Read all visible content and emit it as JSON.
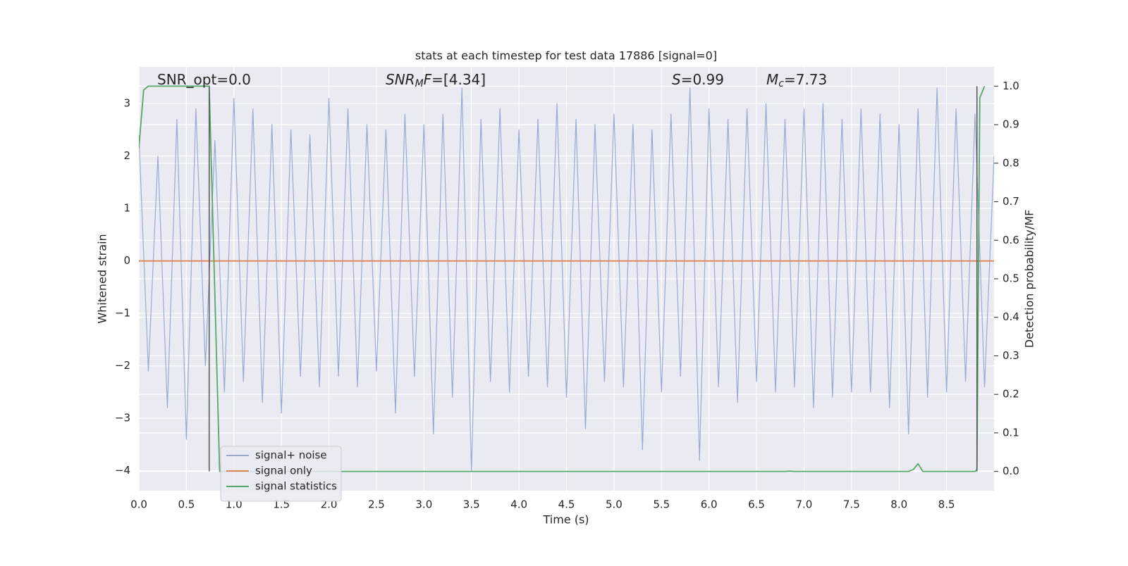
{
  "chart_data": {
    "type": "line",
    "title": "stats at each timestep for test data 17886 [signal=0]",
    "xlabel": "Time (s)",
    "ylabel": "Whitened strain",
    "y2label": "Detection probability/MF",
    "xlim": [
      0,
      9
    ],
    "ylim": [
      -4.38,
      3.7
    ],
    "y2lim": [
      -0.05,
      1.05
    ],
    "xticks": [
      {
        "value": 0,
        "label": "0.0"
      },
      0.5,
      {
        "value": 1,
        "label": "1.0"
      },
      1.5,
      {
        "value": 2,
        "label": "2.0"
      },
      2.5,
      {
        "value": 3,
        "label": "3.0"
      },
      3.5,
      {
        "value": 4,
        "label": "4.0"
      },
      4.5,
      {
        "value": 5,
        "label": "5.0"
      },
      5.5,
      {
        "value": 6,
        "label": "6.0"
      },
      6.5,
      {
        "value": 7,
        "label": "7.0"
      },
      7.5,
      {
        "value": 8,
        "label": "8.0"
      },
      8.5
    ],
    "yticks": [
      {
        "value": -4,
        "label": "−4"
      },
      {
        "value": -3,
        "label": "−3"
      },
      {
        "value": -2,
        "label": "−2"
      },
      {
        "value": -1,
        "label": "−1"
      },
      0,
      1,
      2,
      3
    ],
    "y2ticks": [
      {
        "value": 0,
        "label": "0.0"
      },
      0.1,
      0.2,
      0.3,
      0.4,
      0.5,
      0.6,
      0.7,
      0.8,
      0.9,
      {
        "value": 1,
        "label": "1.0"
      }
    ],
    "grid": true,
    "legend": "lower left",
    "series": [
      {
        "name": "signal+ noise",
        "color": "#9aabd0",
        "axis": "y",
        "x": [
          0,
          0.1,
          0.2,
          0.3,
          0.4,
          0.5,
          0.6,
          0.7,
          0.8,
          0.9,
          1,
          1.1,
          1.2,
          1.3,
          1.4,
          1.5,
          1.6,
          1.7,
          1.8,
          1.9,
          2,
          2.1,
          2.2,
          2.3,
          2.4,
          2.5,
          2.6,
          2.7,
          2.8,
          2.9,
          3,
          3.1,
          3.2,
          3.3,
          3.4,
          3.5,
          3.6,
          3.7,
          3.8,
          3.9,
          4,
          4.1,
          4.2,
          4.3,
          4.4,
          4.5,
          4.6,
          4.7,
          4.8,
          4.9,
          5,
          5.1,
          5.2,
          5.3,
          5.4,
          5.5,
          5.6,
          5.7,
          5.8,
          5.9,
          6,
          6.1,
          6.2,
          6.3,
          6.4,
          6.5,
          6.6,
          6.7,
          6.8,
          6.9,
          7,
          7.1,
          7.2,
          7.3,
          7.4,
          7.5,
          7.6,
          7.7,
          7.8,
          7.9,
          8,
          8.1,
          8.2,
          8.3,
          8.4,
          8.5,
          8.6,
          8.7,
          8.8,
          8.9,
          9
        ],
        "values": [
          2.4,
          -2.1,
          2.0,
          -2.8,
          2.7,
          -3.4,
          2.9,
          -2.0,
          2.3,
          -2.5,
          3.1,
          -2.3,
          2.9,
          -2.7,
          2.6,
          -2.9,
          2.5,
          -2.2,
          2.4,
          -2.4,
          3.1,
          -2.2,
          2.9,
          -2.4,
          2.6,
          -2.1,
          2.5,
          -2.9,
          2.8,
          -2.2,
          2.6,
          -3.3,
          2.8,
          -2.6,
          3.3,
          -4.0,
          2.7,
          -2.3,
          2.9,
          -2.5,
          2.5,
          -2.2,
          2.7,
          -2.4,
          3.0,
          -2.6,
          2.7,
          -3.2,
          2.6,
          -2.3,
          2.8,
          -2.4,
          2.6,
          -3.6,
          2.5,
          -2.5,
          2.8,
          -2.2,
          3.3,
          -3.8,
          2.9,
          -2.4,
          2.7,
          -2.7,
          2.9,
          -2.3,
          3.0,
          -2.5,
          2.7,
          -2.4,
          2.9,
          -2.8,
          3.0,
          -2.6,
          2.7,
          -2.5,
          2.9,
          -2.5,
          2.8,
          -2.8,
          2.6,
          -3.3,
          2.9,
          -2.6,
          3.3,
          -2.5,
          2.9,
          -2.3,
          2.8,
          -2.4,
          2.0
        ]
      },
      {
        "name": "signal only",
        "color": "#dd8452",
        "axis": "y",
        "x": [
          0,
          9
        ],
        "values": [
          0,
          0
        ]
      },
      {
        "name": "signal statistics",
        "color": "#55a868",
        "axis": "y2",
        "x": [
          0,
          0.05,
          0.1,
          0.74,
          0.85,
          0.88,
          6.8,
          6.85,
          6.9,
          8.1,
          8.15,
          8.2,
          8.25,
          8.8,
          8.82,
          8.85,
          8.9
        ],
        "values": [
          0.84,
          0.99,
          1.0,
          1.0,
          0.0,
          0.0,
          0.0,
          0.001,
          0.0,
          0.0,
          0.005,
          0.02,
          0.0,
          0.0,
          0.005,
          0.97,
          1.0
        ]
      }
    ],
    "vlines": {
      "x": [
        0.74,
        8.82
      ],
      "ymin": 0,
      "ymax": 1,
      "axis": "y2",
      "color": "#555555"
    },
    "annotations": [
      {
        "segments": [
          {
            "text": "SNR_opt=0.0",
            "style": "normal"
          }
        ]
      },
      {
        "segments": [
          {
            "text": "SNR",
            "style": "italic"
          },
          {
            "text": "M",
            "style": "sub"
          },
          {
            "text": "F",
            "style": "italic"
          },
          {
            "text": "=[4.34]",
            "style": "normal"
          }
        ]
      },
      {
        "segments": [
          {
            "text": "S",
            "style": "italic"
          },
          {
            "text": "=0.99",
            "style": "normal"
          }
        ]
      },
      {
        "segments": [
          {
            "text": "M",
            "style": "italic"
          },
          {
            "text": "c",
            "style": "sub"
          },
          {
            "text": "=7.73",
            "style": "normal"
          }
        ]
      }
    ]
  }
}
